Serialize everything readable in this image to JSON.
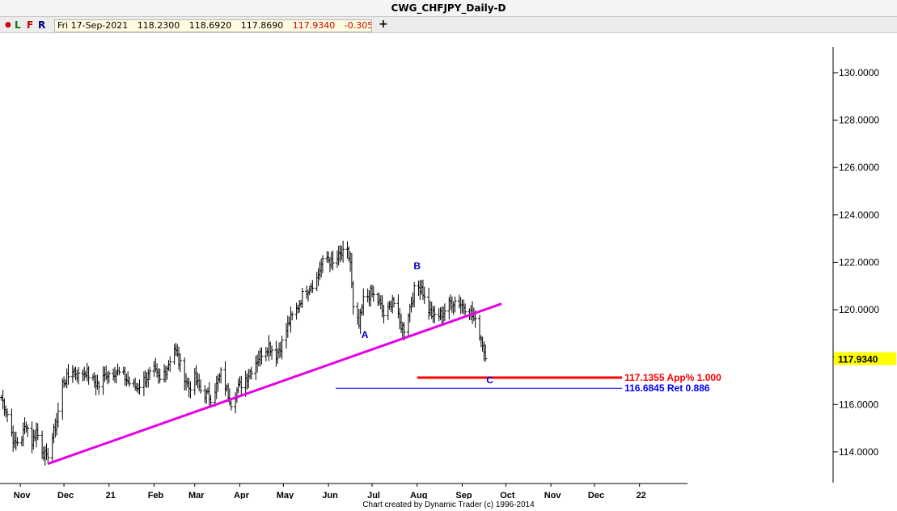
{
  "window": {
    "title": "CWG_CHFJPY_Daily-D"
  },
  "toolbar": {
    "buttons": [
      "L",
      "F",
      "R"
    ],
    "colors": {
      "dot": "#cc0000",
      "L": "#008000",
      "F": "#cc0000",
      "R": "#000080"
    },
    "info": {
      "date": "Fri 17-Sep-2021",
      "open": "118.2300",
      "high": "118.6920",
      "low": "117.8690",
      "close": "117.9340",
      "change": "-0.3050"
    },
    "plus_icon": "plus-icon"
  },
  "footer": {
    "credit": "Chart created by Dynamic Trader  (c) 1996-2014"
  },
  "chart_data": {
    "type": "bar",
    "title": "CWG_CHFJPY_Daily-D",
    "yaxis": {
      "ticks": [
        "114.0000",
        "116.0000",
        "118.0000",
        "120.0000",
        "122.0000",
        "124.0000",
        "126.0000",
        "128.0000",
        "130.0000"
      ],
      "range": [
        112.7,
        131.5
      ]
    },
    "xaxis": {
      "range": [
        "2020-10-18",
        "2022-02-03"
      ],
      "ticks": [
        {
          "label": "Nov",
          "date": "2020-11-01"
        },
        {
          "label": "Dec",
          "date": "2020-12-01"
        },
        {
          "label": "21",
          "date": "2021-01-01"
        },
        {
          "label": "Feb",
          "date": "2021-02-01"
        },
        {
          "label": "Mar",
          "date": "2021-03-01"
        },
        {
          "label": "Apr",
          "date": "2021-04-01"
        },
        {
          "label": "May",
          "date": "2021-05-01"
        },
        {
          "label": "Jun",
          "date": "2021-06-01"
        },
        {
          "label": "Jul",
          "date": "2021-07-01"
        },
        {
          "label": "Aug",
          "date": "2021-08-01"
        },
        {
          "label": "Sep",
          "date": "2021-09-01"
        },
        {
          "label": "Oct",
          "date": "2021-10-01"
        },
        {
          "label": "Nov",
          "date": "2021-11-01"
        },
        {
          "label": "Dec",
          "date": "2021-12-01"
        },
        {
          "label": "22",
          "date": "2022-01-01"
        }
      ]
    },
    "price_path": [
      {
        "date": "2020-10-19",
        "close": 116.3
      },
      {
        "date": "2020-10-23",
        "close": 115.6
      },
      {
        "date": "2020-10-28",
        "close": 114.3
      },
      {
        "date": "2020-11-02",
        "close": 114.6
      },
      {
        "date": "2020-11-05",
        "close": 115.2
      },
      {
        "date": "2020-11-09",
        "close": 114.4
      },
      {
        "date": "2020-11-12",
        "close": 114.9
      },
      {
        "date": "2020-11-16",
        "close": 114.1
      },
      {
        "date": "2020-11-19",
        "close": 113.7
      },
      {
        "date": "2020-11-23",
        "close": 114.6
      },
      {
        "date": "2020-11-26",
        "close": 115.3
      },
      {
        "date": "2020-11-30",
        "close": 116.9
      },
      {
        "date": "2020-12-03",
        "close": 117.1
      },
      {
        "date": "2020-12-07",
        "close": 117.5
      },
      {
        "date": "2020-12-11",
        "close": 117.2
      },
      {
        "date": "2020-12-16",
        "close": 117.4
      },
      {
        "date": "2020-12-21",
        "close": 117.0
      },
      {
        "date": "2020-12-25",
        "close": 116.8
      },
      {
        "date": "2020-12-30",
        "close": 117.3
      },
      {
        "date": "2021-01-05",
        "close": 117.4
      },
      {
        "date": "2021-01-11",
        "close": 117.2
      },
      {
        "date": "2021-01-15",
        "close": 116.9
      },
      {
        "date": "2021-01-20",
        "close": 116.7
      },
      {
        "date": "2021-01-26",
        "close": 117.1
      },
      {
        "date": "2021-02-01",
        "close": 117.4
      },
      {
        "date": "2021-02-05",
        "close": 117.0
      },
      {
        "date": "2021-02-10",
        "close": 117.6
      },
      {
        "date": "2021-02-15",
        "close": 118.4
      },
      {
        "date": "2021-02-18",
        "close": 117.8
      },
      {
        "date": "2021-02-22",
        "close": 117.2
      },
      {
        "date": "2021-02-25",
        "close": 116.7
      },
      {
        "date": "2021-03-01",
        "close": 117.1
      },
      {
        "date": "2021-03-05",
        "close": 116.6
      },
      {
        "date": "2021-03-09",
        "close": 116.4
      },
      {
        "date": "2021-03-12",
        "close": 116.3
      },
      {
        "date": "2021-03-16",
        "close": 116.8
      },
      {
        "date": "2021-03-19",
        "close": 117.3
      },
      {
        "date": "2021-03-23",
        "close": 116.6
      },
      {
        "date": "2021-03-26",
        "close": 116.1
      },
      {
        "date": "2021-03-31",
        "close": 116.7
      },
      {
        "date": "2021-04-06",
        "close": 117.2
      },
      {
        "date": "2021-04-12",
        "close": 117.8
      },
      {
        "date": "2021-04-16",
        "close": 118.2
      },
      {
        "date": "2021-04-21",
        "close": 118.5
      },
      {
        "date": "2021-04-26",
        "close": 118.1
      },
      {
        "date": "2021-04-30",
        "close": 118.6
      },
      {
        "date": "2021-05-05",
        "close": 119.5
      },
      {
        "date": "2021-05-10",
        "close": 120.0
      },
      {
        "date": "2021-05-14",
        "close": 120.6
      },
      {
        "date": "2021-05-19",
        "close": 121.0
      },
      {
        "date": "2021-05-24",
        "close": 121.3
      },
      {
        "date": "2021-05-27",
        "close": 121.9
      },
      {
        "date": "2021-05-31",
        "close": 122.2
      },
      {
        "date": "2021-06-04",
        "close": 121.9
      },
      {
        "date": "2021-06-09",
        "close": 122.3
      },
      {
        "date": "2021-06-14",
        "close": 122.4
      },
      {
        "date": "2021-06-16",
        "close": 122.0
      },
      {
        "date": "2021-06-18",
        "close": 120.0
      },
      {
        "date": "2021-06-22",
        "close": 119.3
      },
      {
        "date": "2021-06-25",
        "close": 120.4
      },
      {
        "date": "2021-06-30",
        "close": 120.7
      },
      {
        "date": "2021-07-06",
        "close": 120.3
      },
      {
        "date": "2021-07-10",
        "close": 119.6
      },
      {
        "date": "2021-07-15",
        "close": 120.5
      },
      {
        "date": "2021-07-20",
        "close": 119.4
      },
      {
        "date": "2021-07-23",
        "close": 119.2
      },
      {
        "date": "2021-07-27",
        "close": 120.1
      },
      {
        "date": "2021-07-30",
        "close": 120.8
      },
      {
        "date": "2021-08-04",
        "close": 121.0
      },
      {
        "date": "2021-08-07",
        "close": 120.2
      },
      {
        "date": "2021-08-11",
        "close": 119.8
      },
      {
        "date": "2021-08-15",
        "close": 119.7
      },
      {
        "date": "2021-08-19",
        "close": 119.9
      },
      {
        "date": "2021-08-24",
        "close": 120.3
      },
      {
        "date": "2021-08-28",
        "close": 120.4
      },
      {
        "date": "2021-09-01",
        "close": 120.2
      },
      {
        "date": "2021-09-06",
        "close": 120.0
      },
      {
        "date": "2021-09-09",
        "close": 119.6
      },
      {
        "date": "2021-09-13",
        "close": 119.0
      },
      {
        "date": "2021-09-15",
        "close": 118.6
      },
      {
        "date": "2021-09-17",
        "close": 117.934
      }
    ],
    "trendline": {
      "from": {
        "date": "2020-11-20",
        "value": 113.5
      },
      "to": {
        "date": "2021-09-28",
        "value": 120.25
      },
      "color": "#e600e6"
    },
    "levels": [
      {
        "value": 117.1355,
        "label": "117.1355 App% 1.000",
        "color": "#ff0000",
        "from": "2021-08-01",
        "to": "2021-12-20",
        "width": 3
      },
      {
        "value": 116.6845,
        "label": "116.6845 Ret 0.886",
        "color": "#0000ff",
        "from": "2021-06-06",
        "to": "2021-12-20",
        "width": 1
      }
    ],
    "wave_labels": [
      {
        "label": "A",
        "date": "2021-06-26",
        "value": 118.8
      },
      {
        "label": "B",
        "date": "2021-08-01",
        "value": 121.7
      },
      {
        "label": "C",
        "date": "2021-09-20",
        "value": 116.9
      }
    ],
    "last_price": {
      "label": "117.9340",
      "value": 117.934,
      "bg": "#ffff00"
    }
  }
}
